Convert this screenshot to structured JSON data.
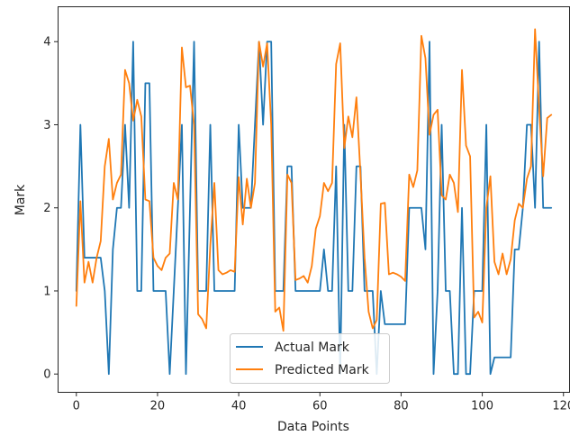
{
  "chart_data": {
    "type": "line",
    "title": "",
    "xlabel": "Data Points",
    "ylabel": "Mark",
    "xlim": [
      -4.5,
      121.5
    ],
    "ylim": [
      -0.22,
      4.42
    ],
    "xticks": [
      0,
      20,
      40,
      60,
      80,
      100,
      120
    ],
    "xtick_labels": [
      "0",
      "20",
      "40",
      "60",
      "80",
      "100",
      "120"
    ],
    "yticks": [
      0,
      1,
      2,
      3,
      4
    ],
    "ytick_labels": [
      "0",
      "1",
      "2",
      "3",
      "4"
    ],
    "grid": false,
    "legend_position": "lower center",
    "series": [
      {
        "name": "Actual Mark",
        "color": "#1f77b4",
        "values": [
          1,
          3,
          1.4,
          1.4,
          1.4,
          1.4,
          1.4,
          1,
          0,
          1.5,
          2,
          2,
          3,
          2,
          4,
          1,
          1,
          3.5,
          3.5,
          1,
          1,
          1,
          1,
          0,
          1,
          2,
          3,
          0,
          2,
          4,
          1,
          1,
          1,
          3,
          1,
          1,
          1,
          1,
          1,
          1,
          3,
          2,
          2,
          2,
          3,
          4,
          3,
          4,
          4,
          1,
          1,
          1,
          2.5,
          2.5,
          1,
          1,
          1,
          1,
          1,
          1,
          1,
          1.5,
          1,
          1,
          2.5,
          0,
          3,
          1,
          1,
          2.5,
          2.5,
          1,
          1,
          1,
          0,
          1,
          0.6,
          0.6,
          0.6,
          0.6,
          0.6,
          0.6,
          2,
          2,
          2,
          2,
          1.5,
          4,
          0,
          1,
          3,
          1,
          1,
          0,
          0,
          2,
          0,
          0,
          1,
          1,
          1,
          3,
          0,
          0.2,
          0.2,
          0.2,
          0.2,
          0.2,
          1.5,
          1.5,
          2,
          3,
          3,
          2,
          4,
          2,
          2,
          2
        ]
      },
      {
        "name": "Predicted Mark",
        "color": "#ff7f0e",
        "values": [
          0.82,
          2.08,
          1.1,
          1.35,
          1.1,
          1.4,
          1.6,
          2.5,
          2.83,
          2.1,
          2.3,
          2.4,
          3.66,
          3.5,
          3.05,
          3.3,
          3.1,
          2.1,
          2.08,
          1.4,
          1.3,
          1.25,
          1.4,
          1.45,
          2.3,
          2.1,
          3.93,
          3.45,
          3.47,
          3.0,
          0.72,
          0.66,
          0.55,
          1.55,
          2.3,
          1.25,
          1.2,
          1.22,
          1.25,
          1.23,
          2.37,
          1.8,
          2.35,
          2.0,
          2.3,
          4.0,
          3.7,
          3.98,
          3.0,
          0.75,
          0.8,
          0.52,
          2.4,
          2.3,
          1.13,
          1.15,
          1.18,
          1.1,
          1.3,
          1.75,
          1.9,
          2.3,
          2.2,
          2.3,
          3.73,
          3.98,
          2.72,
          3.1,
          2.85,
          3.33,
          2.4,
          1.4,
          0.75,
          0.55,
          0.65,
          2.05,
          2.06,
          1.2,
          1.22,
          1.2,
          1.17,
          1.12,
          2.4,
          2.25,
          2.45,
          4.07,
          3.8,
          2.88,
          3.12,
          3.18,
          2.15,
          2.1,
          2.4,
          2.3,
          1.95,
          3.66,
          2.75,
          2.62,
          0.68,
          0.75,
          0.62,
          2.0,
          2.38,
          1.35,
          1.2,
          1.45,
          1.2,
          1.38,
          1.85,
          2.05,
          2.0,
          2.35,
          2.5,
          4.15,
          3.2,
          2.38,
          3.08,
          3.12
        ]
      }
    ]
  }
}
